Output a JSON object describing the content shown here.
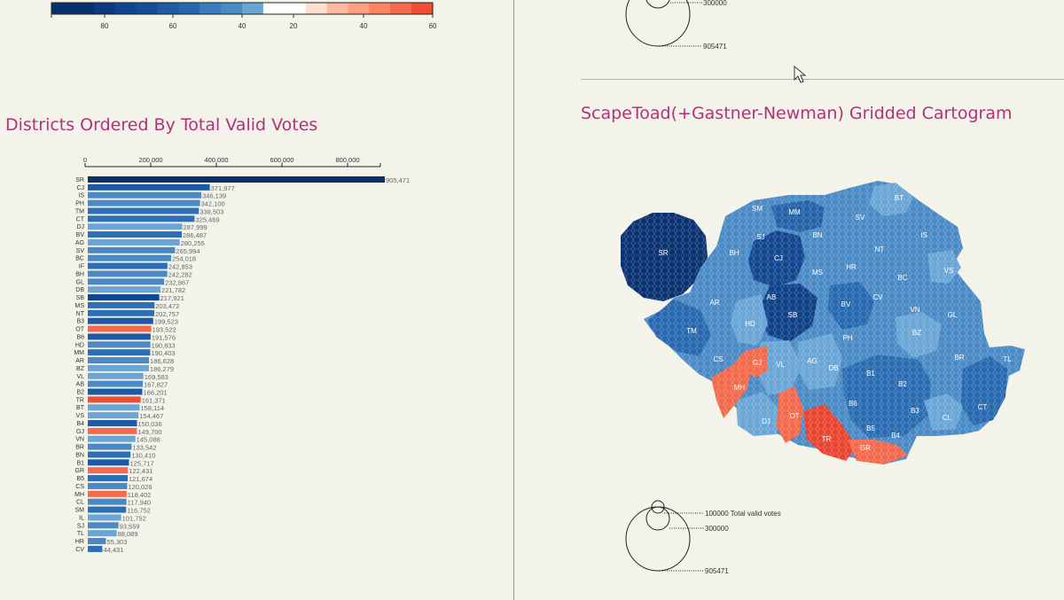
{
  "colors": {
    "title": "#b5307a",
    "bg": "#f3f3ea"
  },
  "legend": {
    "ticks": [
      "80",
      "60",
      "40",
      "20",
      "40",
      "60"
    ],
    "colors": [
      "#08306b",
      "#08306b",
      "#0b3b7e",
      "#0d4590",
      "#114d98",
      "#1d5aa6",
      "#2767b2",
      "#3a7cbd",
      "#4a8bc4",
      "#6aa5d3",
      "#ffffff",
      "#ffffff",
      "#fee0d2",
      "#fcbba1",
      "#fc9f85",
      "#fb8464",
      "#f6694a",
      "#ef4d34"
    ]
  },
  "top_circles": {
    "labels": [
      "300000",
      "905471"
    ]
  },
  "bottom_circles": {
    "labels": [
      "100000 Total valid votes",
      "300000",
      "905471"
    ]
  },
  "left_title": "Districts Ordered By Total Valid Votes",
  "right_title": "ScapeToad(+Gastner-Newman) Gridded Cartogram",
  "chart_data": {
    "type": "bar",
    "title": "Districts Ordered By Total Valid Votes",
    "axis_ticks": [
      "0",
      "200,000",
      "400,000",
      "600,000",
      "800,000"
    ],
    "xlim": [
      0,
      900000
    ],
    "categories": [
      "SR",
      "CJ",
      "IS",
      "PH",
      "TM",
      "CT",
      "DJ",
      "BV",
      "AG",
      "SV",
      "BC",
      "IF",
      "BH",
      "GL",
      "DB",
      "SB",
      "MS",
      "NT",
      "B3",
      "OT",
      "B6",
      "HD",
      "MM",
      "AR",
      "BZ",
      "VL",
      "AB",
      "B2",
      "TR",
      "BT",
      "VS",
      "B4",
      "GJ",
      "VN",
      "BR",
      "BN",
      "B1",
      "GR",
      "B5",
      "CS",
      "MH",
      "CL",
      "SM",
      "IL",
      "SJ",
      "TL",
      "HR",
      "CV"
    ],
    "values": [
      905471,
      371977,
      346139,
      342100,
      338503,
      325469,
      287999,
      286487,
      280255,
      265994,
      254018,
      242853,
      242282,
      232867,
      221782,
      217921,
      203472,
      202757,
      199523,
      193522,
      191576,
      190833,
      190403,
      186628,
      186279,
      169583,
      167827,
      166201,
      161371,
      158114,
      154467,
      150036,
      149700,
      145086,
      133542,
      130410,
      125717,
      122431,
      121674,
      120026,
      118402,
      117940,
      116752,
      101752,
      93559,
      88089,
      55303,
      44431
    ],
    "labels": [
      "905,471",
      "371,977",
      "346,139",
      "342,100",
      "338,503",
      "325,469",
      "287,999",
      "286,487",
      "280,255",
      "265,994",
      "254,018",
      "242,853",
      "242,282",
      "232,867",
      "221,782",
      "217,921",
      "203,472",
      "202,757",
      "199,523",
      "193,522",
      "191,576",
      "190,833",
      "190,403",
      "186,628",
      "186,279",
      "169,583",
      "167,827",
      "166,201",
      "161,371",
      "158,114",
      "154,467",
      "150,036",
      "149,700",
      "145,086",
      "133,542",
      "130,410",
      "125,717",
      "122,431",
      "121,674",
      "120,026",
      "118,402",
      "117,940",
      "116,752",
      "101,752",
      "93,559",
      "88,089",
      "55,303",
      "44,431"
    ],
    "colors": [
      "#08306b",
      "#1c5aa6",
      "#4a89c5",
      "#4a89c5",
      "#2d6fb7",
      "#2d6fb7",
      "#6aa5d3",
      "#2d6fb7",
      "#6aa5d3",
      "#4a89c5",
      "#4a89c5",
      "#2d6fb7",
      "#4a89c5",
      "#4a89c5",
      "#6aa5d3",
      "#0d4590",
      "#2d6fb7",
      "#2d6fb7",
      "#1c5aa6",
      "#f6694a",
      "#1c5aa6",
      "#4a89c5",
      "#2d6fb7",
      "#4a89c5",
      "#6aa5d3",
      "#6aa5d3",
      "#4a89c5",
      "#1c5aa6",
      "#ef4d34",
      "#6aa5d3",
      "#6aa5d3",
      "#1c5aa6",
      "#f6694a",
      "#6aa5d3",
      "#4a89c5",
      "#2d6fb7",
      "#1c5aa6",
      "#f6694a",
      "#2d6fb7",
      "#4a89c5",
      "#f6694a",
      "#4a89c5",
      "#2d6fb7",
      "#6aa5d3",
      "#4a89c5",
      "#6aa5d3",
      "#4a89c5",
      "#2d6fb7"
    ]
  },
  "map_labels": [
    "BT",
    "SM",
    "MM",
    "SV",
    "SJ",
    "BN",
    "IS",
    "SR",
    "BH",
    "CJ",
    "NT",
    "HR",
    "VS",
    "MS",
    "BC",
    "AR",
    "AB",
    "CV",
    "SB",
    "BV",
    "VN",
    "GL",
    "HD",
    "TM",
    "PH",
    "BZ",
    "CS",
    "GJ",
    "VL",
    "AG",
    "DB",
    "BR",
    "TL",
    "B1",
    "B2",
    "MH",
    "B6",
    "B3",
    "CT",
    "DJ",
    "OT",
    "CL",
    "B5",
    "B4",
    "TR",
    "GR"
  ]
}
